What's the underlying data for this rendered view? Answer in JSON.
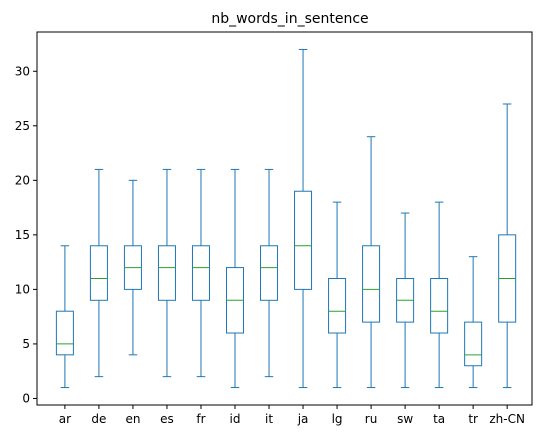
{
  "chart_data": {
    "type": "boxplot",
    "title": "nb_words_in_sentence",
    "xlabel": "",
    "ylabel": "",
    "ylim": [
      -0.6,
      33.6
    ],
    "yticks": [
      0,
      5,
      10,
      15,
      20,
      25,
      30
    ],
    "grid": false,
    "box_color": "#1f77b4",
    "median_color": "#2ca02c",
    "categories": [
      "ar",
      "de",
      "en",
      "es",
      "fr",
      "id",
      "it",
      "ja",
      "lg",
      "ru",
      "sw",
      "ta",
      "tr",
      "zh-CN"
    ],
    "boxes": [
      {
        "category": "ar",
        "whisker_low": 1,
        "q1": 4,
        "median": 5,
        "q3": 8,
        "whisker_high": 14
      },
      {
        "category": "de",
        "whisker_low": 2,
        "q1": 9,
        "median": 11,
        "q3": 14,
        "whisker_high": 21
      },
      {
        "category": "en",
        "whisker_low": 4,
        "q1": 10,
        "median": 12,
        "q3": 14,
        "whisker_high": 20
      },
      {
        "category": "es",
        "whisker_low": 2,
        "q1": 9,
        "median": 12,
        "q3": 14,
        "whisker_high": 21
      },
      {
        "category": "fr",
        "whisker_low": 2,
        "q1": 9,
        "median": 12,
        "q3": 14,
        "whisker_high": 21
      },
      {
        "category": "id",
        "whisker_low": 1,
        "q1": 6,
        "median": 9,
        "q3": 12,
        "whisker_high": 21
      },
      {
        "category": "it",
        "whisker_low": 2,
        "q1": 9,
        "median": 12,
        "q3": 14,
        "whisker_high": 21
      },
      {
        "category": "ja",
        "whisker_low": 1,
        "q1": 10,
        "median": 14,
        "q3": 19,
        "whisker_high": 32
      },
      {
        "category": "lg",
        "whisker_low": 1,
        "q1": 6,
        "median": 8,
        "q3": 11,
        "whisker_high": 18
      },
      {
        "category": "ru",
        "whisker_low": 1,
        "q1": 7,
        "median": 10,
        "q3": 14,
        "whisker_high": 24
      },
      {
        "category": "sw",
        "whisker_low": 1,
        "q1": 7,
        "median": 9,
        "q3": 11,
        "whisker_high": 17
      },
      {
        "category": "ta",
        "whisker_low": 1,
        "q1": 6,
        "median": 8,
        "q3": 11,
        "whisker_high": 18
      },
      {
        "category": "tr",
        "whisker_low": 1,
        "q1": 3,
        "median": 4,
        "q3": 7,
        "whisker_high": 13
      },
      {
        "category": "zh-CN",
        "whisker_low": 1,
        "q1": 7,
        "median": 11,
        "q3": 15,
        "whisker_high": 27
      }
    ]
  }
}
